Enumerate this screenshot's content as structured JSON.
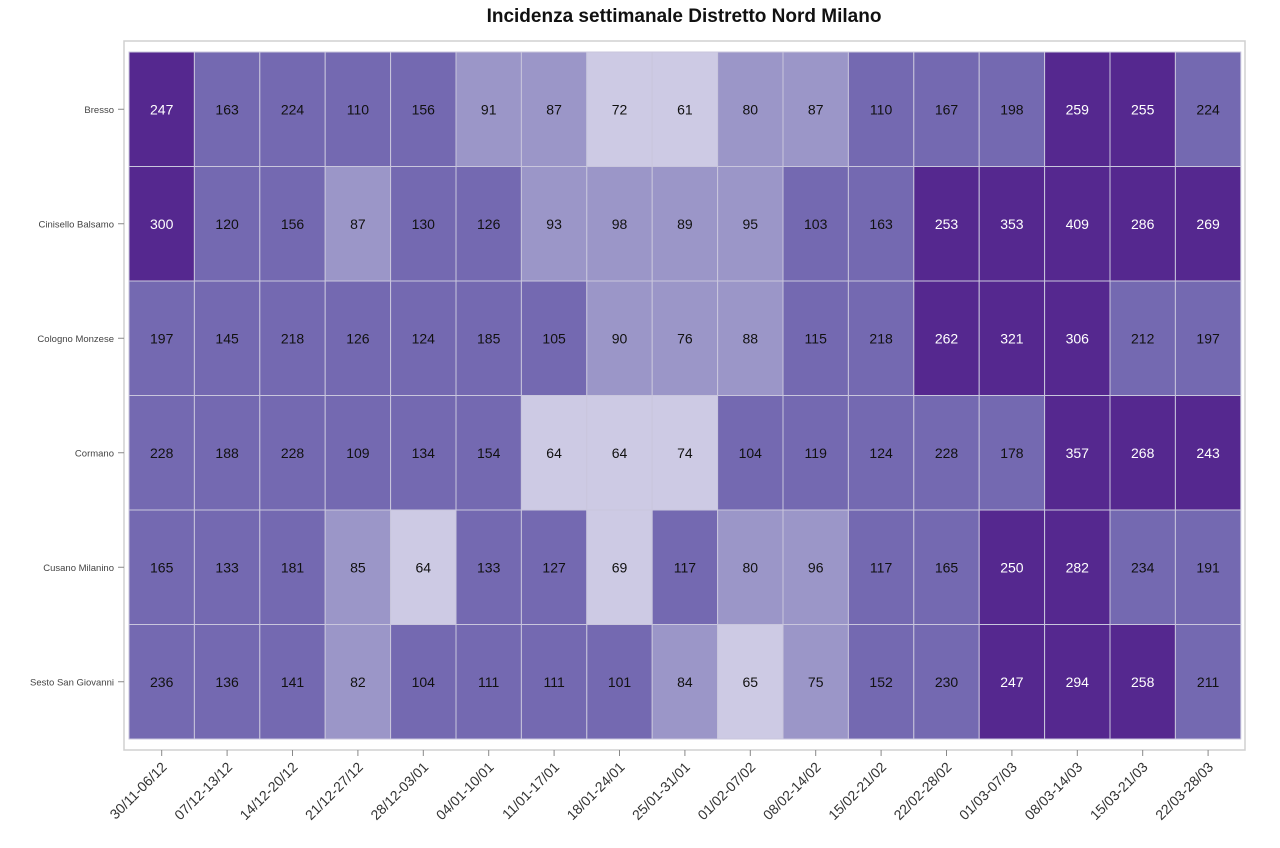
{
  "chart_data": {
    "type": "heatmap",
    "title": "Incidenza settimanale Distretto Nord Milano",
    "rows": [
      "Bresso",
      "Cinisello Balsamo",
      "Cologno Monzese",
      "Cormano",
      "Cusano Milanino",
      "Sesto San Giovanni"
    ],
    "columns": [
      "30/11-06/12",
      "07/12-13/12",
      "14/12-20/12",
      "21/12-27/12",
      "28/12-03/01",
      "04/01-10/01",
      "11/01-17/01",
      "18/01-24/01",
      "25/01-31/01",
      "01/02-07/02",
      "08/02-14/02",
      "15/02-21/02",
      "22/02-28/02",
      "01/03-07/03",
      "08/03-14/03",
      "15/03-21/03",
      "22/03-28/03"
    ],
    "values": [
      [
        247,
        163,
        224,
        110,
        156,
        91,
        87,
        72,
        61,
        80,
        87,
        110,
        167,
        198,
        259,
        255,
        224
      ],
      [
        300,
        120,
        156,
        87,
        130,
        126,
        93,
        98,
        89,
        95,
        103,
        163,
        253,
        353,
        409,
        286,
        269
      ],
      [
        197,
        145,
        218,
        126,
        124,
        185,
        105,
        90,
        76,
        88,
        115,
        218,
        262,
        321,
        306,
        212,
        197
      ],
      [
        228,
        188,
        228,
        109,
        134,
        154,
        64,
        64,
        74,
        104,
        119,
        124,
        228,
        178,
        357,
        268,
        243
      ],
      [
        165,
        133,
        181,
        85,
        64,
        133,
        127,
        69,
        117,
        80,
        96,
        117,
        165,
        250,
        282,
        234,
        191
      ],
      [
        236,
        136,
        141,
        82,
        104,
        111,
        111,
        101,
        84,
        65,
        75,
        152,
        230,
        247,
        294,
        258,
        211
      ]
    ],
    "colors": {
      "low": "#cdcae4",
      "light": "#9b96c8",
      "mid": "#7469b1",
      "high": "#55288f",
      "text_dark": "#111111",
      "text_light": "#ffffff",
      "grid": "#c9c6dd",
      "border": "#d0d0d0"
    },
    "legend": "none"
  }
}
